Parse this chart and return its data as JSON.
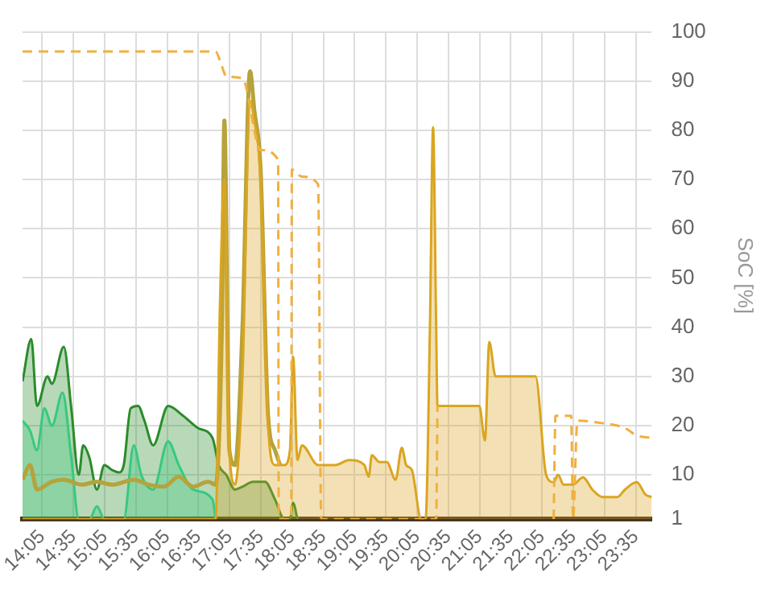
{
  "chart_data": {
    "type": "area",
    "ylabel": "SoC [%]",
    "ylim": [
      1,
      100
    ],
    "yticks": [
      1,
      10,
      20,
      30,
      40,
      50,
      60,
      70,
      80,
      90,
      100
    ],
    "xlim": [
      13.77,
      23.84
    ],
    "xticks": [
      {
        "value": 14.0833,
        "label": "14:05"
      },
      {
        "value": 14.5833,
        "label": "14:35"
      },
      {
        "value": 15.0833,
        "label": "15:05"
      },
      {
        "value": 15.5833,
        "label": "15:35"
      },
      {
        "value": 16.0833,
        "label": "16:05"
      },
      {
        "value": 16.5833,
        "label": "16:35"
      },
      {
        "value": 17.0833,
        "label": "17:05"
      },
      {
        "value": 17.5833,
        "label": "17:35"
      },
      {
        "value": 18.0833,
        "label": "18:05"
      },
      {
        "value": 18.5833,
        "label": "18:35"
      },
      {
        "value": 19.0833,
        "label": "19:05"
      },
      {
        "value": 19.5833,
        "label": "19:35"
      },
      {
        "value": 20.0833,
        "label": "20:05"
      },
      {
        "value": 20.5833,
        "label": "20:35"
      },
      {
        "value": 21.0833,
        "label": "21:05"
      },
      {
        "value": 21.5833,
        "label": "21:35"
      },
      {
        "value": 22.0833,
        "label": "22:05"
      },
      {
        "value": 22.5833,
        "label": "22:35"
      },
      {
        "value": 23.0833,
        "label": "23:05"
      },
      {
        "value": 23.5833,
        "label": "23:35"
      }
    ],
    "grid": true,
    "marker": "none",
    "series": [
      {
        "type": "area",
        "color": "#3ee8a8",
        "x": [
          13.77,
          13.89,
          14.0,
          14.12,
          14.24,
          14.41,
          14.55,
          14.67,
          14.84,
          14.96,
          15.08,
          15.39,
          15.55,
          15.67,
          15.86,
          16.1,
          16.27,
          16.5,
          16.81,
          16.86
        ],
        "values": [
          21,
          19,
          15,
          23.5,
          20,
          26.7,
          13.5,
          1,
          1,
          3.6,
          1,
          1,
          16,
          10,
          7,
          16.8,
          12,
          7,
          5,
          1
        ]
      },
      {
        "type": "area",
        "color": "#2a8c2a",
        "x": [
          13.77,
          13.91,
          14.0,
          14.17,
          14.24,
          14.43,
          14.55,
          14.67,
          14.74,
          14.84,
          14.96,
          15.08,
          15.2,
          15.31,
          15.39,
          15.5,
          15.62,
          15.72,
          15.86,
          16.1,
          16.34,
          16.58,
          16.81,
          16.91,
          17.03,
          17.17,
          17.29,
          17.46,
          17.65,
          17.81,
          17.96,
          18.05,
          18.1,
          18.17
        ],
        "values": [
          29,
          37.6,
          24,
          30,
          28.5,
          36,
          23.5,
          10,
          16,
          13.5,
          7,
          12,
          11,
          10.5,
          12,
          23.5,
          24,
          21,
          16,
          24,
          22,
          19.5,
          17.5,
          12,
          10,
          7,
          7.6,
          8.6,
          8.6,
          5,
          1,
          1,
          4.3,
          1
        ]
      },
      {
        "type": "line",
        "color": "#b5a33c",
        "x": [
          13.77,
          13.89,
          14.0,
          14.24,
          14.43,
          14.72,
          14.96,
          15.2,
          15.55,
          15.79,
          16.03,
          16.27,
          16.5,
          16.74,
          16.86,
          16.96,
          17.0,
          17.08,
          17.17,
          17.29,
          17.41,
          17.48,
          17.58,
          17.7,
          17.81,
          17.89
        ],
        "values": [
          9,
          12,
          7,
          8.6,
          9,
          8,
          8.6,
          8,
          9,
          8,
          7.6,
          9.6,
          7.6,
          8.6,
          8,
          40,
          82,
          15,
          12,
          40,
          92,
          84,
          72,
          22,
          15,
          12
        ]
      },
      {
        "type": "area",
        "color": "#daa520",
        "x": [
          13.77,
          16.86,
          16.93,
          17.0,
          17.08,
          17.17,
          17.29,
          17.41,
          17.48,
          17.58,
          17.7,
          17.81,
          17.96,
          18.05,
          18.1,
          18.17,
          18.24,
          18.5,
          18.77,
          19.0,
          19.24,
          19.31,
          19.36,
          19.48,
          19.6,
          19.74,
          19.84,
          19.91,
          20.0,
          20.15,
          20.22,
          20.29,
          20.34,
          20.39,
          20.41,
          20.67,
          21.08,
          21.17,
          21.24,
          21.34,
          21.98,
          22.15,
          22.27,
          22.34,
          22.43,
          22.58,
          22.74,
          22.89,
          23.05,
          23.29,
          23.41,
          23.6,
          23.74,
          23.84
        ],
        "values": [
          1,
          1,
          45,
          70,
          15,
          8,
          30,
          86,
          82,
          70,
          20,
          12,
          12,
          15,
          34,
          13,
          16,
          12,
          12,
          13,
          12,
          9.6,
          14,
          12.6,
          12.6,
          9,
          15.5,
          12,
          11,
          1,
          1,
          40,
          80.6,
          40,
          24,
          24,
          24,
          17,
          37,
          30,
          30,
          10,
          8.5,
          10,
          8,
          8,
          9.5,
          7,
          5.5,
          5.5,
          7,
          8.5,
          6,
          5.5
        ]
      },
      {
        "type": "line",
        "color": "#f0b040",
        "line_style": "dashed",
        "x": [
          13.77,
          16.86,
          16.96,
          17.03,
          17.29,
          17.58,
          17.86,
          17.87,
          18.07,
          18.08,
          18.24,
          18.5,
          18.55,
          20.39,
          20.41,
          21.5,
          22.27,
          22.3,
          22.55,
          22.58,
          22.65,
          23.05,
          23.41,
          23.6,
          23.84
        ],
        "values": [
          96,
          96,
          93,
          91,
          90.5,
          76,
          74,
          1,
          1,
          72,
          70.6,
          69,
          1,
          1,
          24,
          null,
          1,
          22,
          22,
          1,
          21,
          20.5,
          19.5,
          18,
          17.5
        ]
      }
    ]
  }
}
